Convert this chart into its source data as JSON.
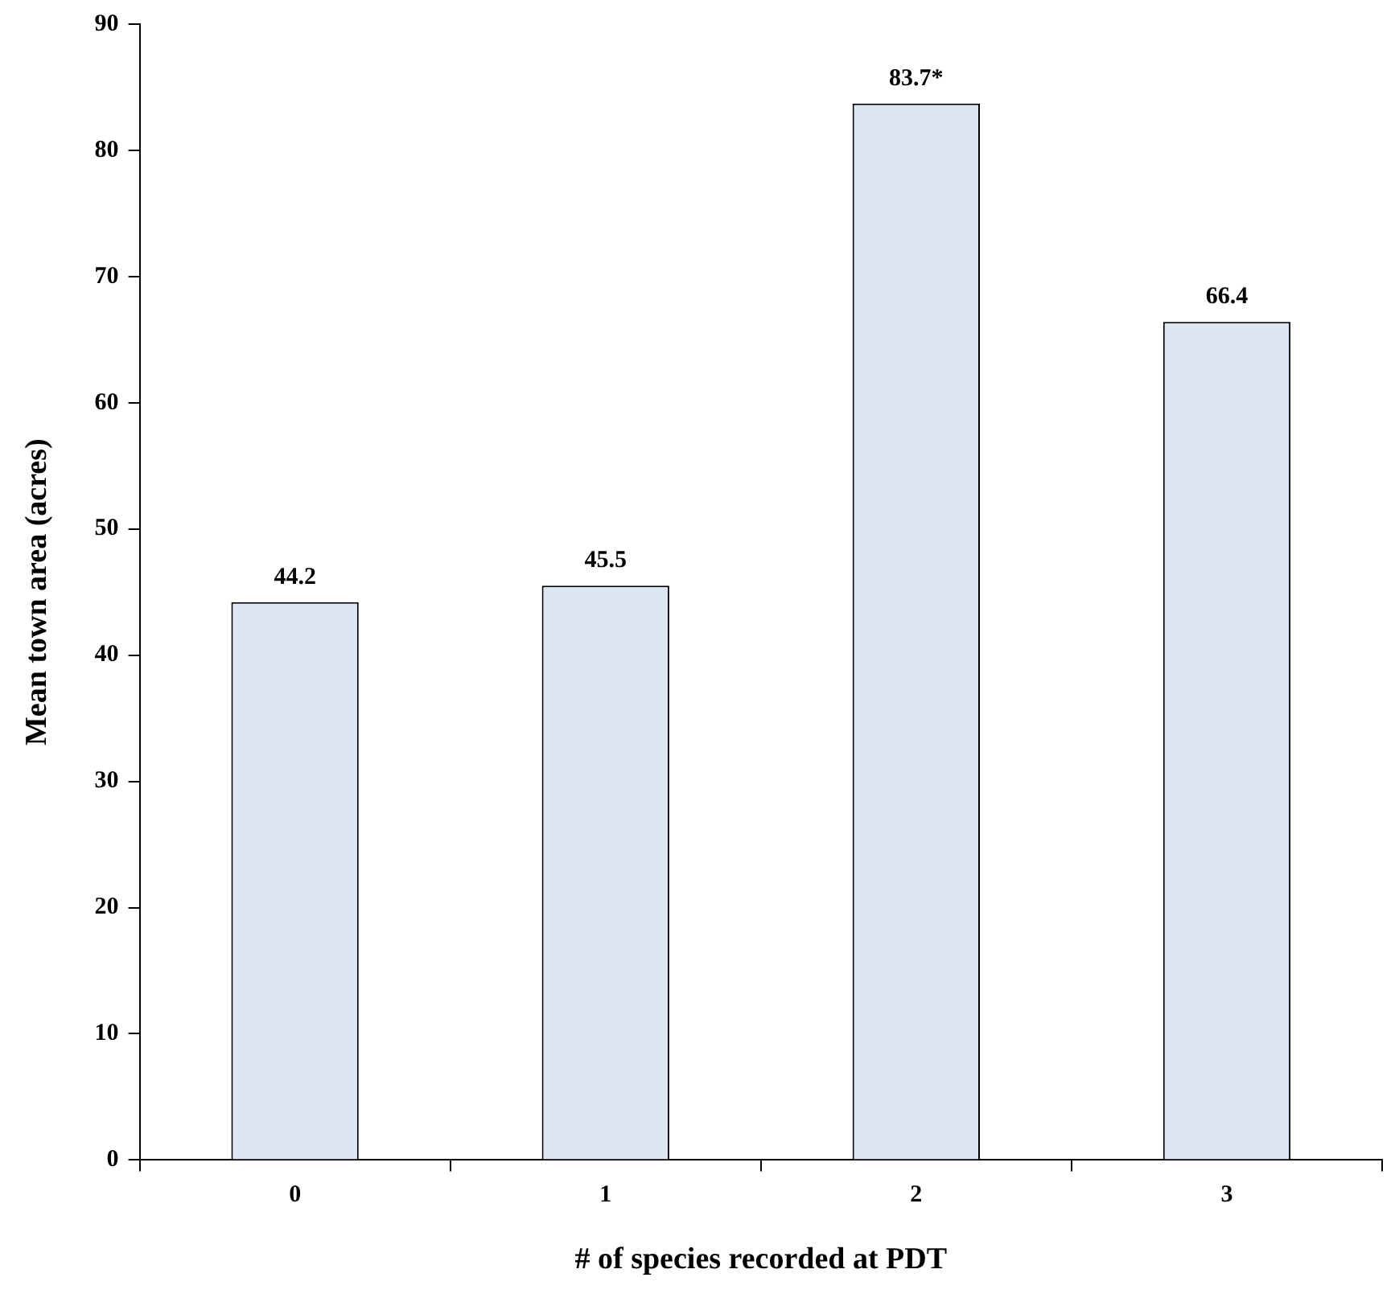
{
  "chart_data": {
    "type": "bar",
    "xlabel": "# of species recorded at PDT",
    "ylabel": "Mean town area (acres)",
    "categories": [
      "0",
      "1",
      "2",
      "3"
    ],
    "values": [
      44.2,
      45.5,
      83.7,
      66.4
    ],
    "value_labels": [
      "44.2",
      "45.5",
      "83.7*",
      "66.4"
    ],
    "color": "#dce6f2",
    "ylim": [
      0,
      90
    ],
    "yticks": [
      0,
      10,
      20,
      30,
      40,
      50,
      60,
      70,
      80,
      90
    ],
    "grid": false,
    "legend": false
  }
}
